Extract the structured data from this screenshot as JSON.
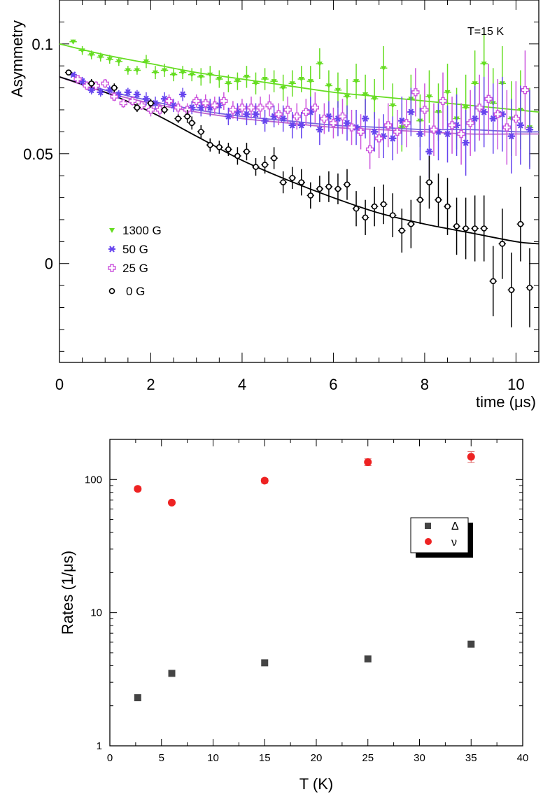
{
  "chart_data": [
    {
      "type": "scatter",
      "annotation": "T=15 K",
      "xlabel": "time (μs)",
      "ylabel": "Asymmetry",
      "xlim": [
        0,
        10.5
      ],
      "ylim": [
        -0.045,
        0.12
      ],
      "xticks": [
        "0",
        "2",
        "4",
        "6",
        "8",
        "10"
      ],
      "yticks": [
        "0",
        "0.05",
        "0.1"
      ],
      "legend_placement": "left-middle",
      "series": [
        {
          "name": "1300 G",
          "color": "#66dd22",
          "marker": "triangle-down",
          "x": [
            0.3,
            0.5,
            0.7,
            0.9,
            1.1,
            1.3,
            1.5,
            1.7,
            1.9,
            2.1,
            2.3,
            2.5,
            2.7,
            2.9,
            3.1,
            3.3,
            3.5,
            3.7,
            3.9,
            4.1,
            4.3,
            4.5,
            4.7,
            4.9,
            5.1,
            5.3,
            5.5,
            5.7,
            5.9,
            6.1,
            6.3,
            6.5,
            6.7,
            6.9,
            7.1,
            7.3,
            7.5,
            7.7,
            7.9,
            8.1,
            8.3,
            8.5,
            8.7,
            8.9,
            9.1,
            9.3,
            9.5,
            9.7,
            9.9,
            10.1,
            10.3
          ],
          "y": [
            0.101,
            0.097,
            0.095,
            0.094,
            0.093,
            0.092,
            0.088,
            0.088,
            0.092,
            0.087,
            0.088,
            0.086,
            0.087,
            0.086,
            0.085,
            0.086,
            0.084,
            0.082,
            0.083,
            0.085,
            0.082,
            0.084,
            0.083,
            0.08,
            0.082,
            0.084,
            0.083,
            0.091,
            0.081,
            0.079,
            0.076,
            0.083,
            0.077,
            0.075,
            0.089,
            0.072,
            0.062,
            0.075,
            0.065,
            0.076,
            0.069,
            0.078,
            0.066,
            0.071,
            0.082,
            0.091,
            0.073,
            0.082,
            0.066,
            0.07,
            0.062
          ],
          "yerr": [
            0.001,
            0.002,
            0.002,
            0.002,
            0.002,
            0.002,
            0.002,
            0.002,
            0.003,
            0.003,
            0.003,
            0.003,
            0.003,
            0.003,
            0.004,
            0.004,
            0.004,
            0.004,
            0.004,
            0.005,
            0.005,
            0.005,
            0.005,
            0.006,
            0.006,
            0.006,
            0.007,
            0.007,
            0.007,
            0.008,
            0.008,
            0.008,
            0.009,
            0.009,
            0.01,
            0.01,
            0.011,
            0.011,
            0.012,
            0.012,
            0.013,
            0.013,
            0.014,
            0.015,
            0.015,
            0.016,
            0.016,
            0.017,
            0.017,
            0.018,
            0.018
          ]
        },
        {
          "name": "50 G",
          "color": "#6644ee",
          "marker": "star",
          "x": [
            0.3,
            0.5,
            0.7,
            0.9,
            1.1,
            1.3,
            1.5,
            1.7,
            1.9,
            2.1,
            2.3,
            2.5,
            2.7,
            2.9,
            3.1,
            3.3,
            3.5,
            3.7,
            3.9,
            4.1,
            4.3,
            4.5,
            4.7,
            4.9,
            5.1,
            5.3,
            5.5,
            5.7,
            5.9,
            6.1,
            6.3,
            6.5,
            6.7,
            6.9,
            7.1,
            7.3,
            7.5,
            7.7,
            7.9,
            8.1,
            8.3,
            8.5,
            8.7,
            8.9,
            9.1,
            9.3,
            9.5,
            9.7,
            9.9,
            10.1,
            10.3
          ],
          "y": [
            0.086,
            0.083,
            0.079,
            0.078,
            0.079,
            0.077,
            0.078,
            0.077,
            0.075,
            0.073,
            0.075,
            0.072,
            0.077,
            0.071,
            0.071,
            0.071,
            0.072,
            0.067,
            0.069,
            0.068,
            0.068,
            0.065,
            0.067,
            0.066,
            0.063,
            0.063,
            0.069,
            0.061,
            0.067,
            0.066,
            0.064,
            0.062,
            0.066,
            0.06,
            0.058,
            0.057,
            0.065,
            0.069,
            0.059,
            0.051,
            0.06,
            0.059,
            0.063,
            0.055,
            0.066,
            0.069,
            0.066,
            0.068,
            0.058,
            0.063,
            0.061
          ],
          "yerr": [
            0.001,
            0.002,
            0.002,
            0.002,
            0.002,
            0.002,
            0.002,
            0.002,
            0.003,
            0.003,
            0.003,
            0.003,
            0.003,
            0.003,
            0.004,
            0.004,
            0.004,
            0.004,
            0.004,
            0.005,
            0.005,
            0.005,
            0.005,
            0.006,
            0.006,
            0.006,
            0.007,
            0.007,
            0.007,
            0.008,
            0.008,
            0.008,
            0.009,
            0.009,
            0.01,
            0.01,
            0.011,
            0.011,
            0.012,
            0.012,
            0.013,
            0.013,
            0.014,
            0.015,
            0.015,
            0.016,
            0.016,
            0.017,
            0.017,
            0.018,
            0.018
          ]
        },
        {
          "name": "25 G",
          "color": "#cc55dd",
          "marker": "cross",
          "x": [
            0.4,
            0.6,
            0.8,
            1.0,
            1.2,
            1.4,
            1.6,
            1.8,
            2.0,
            2.2,
            2.4,
            2.6,
            2.8,
            3.0,
            3.2,
            3.4,
            3.6,
            3.8,
            4.0,
            4.2,
            4.4,
            4.6,
            4.8,
            5.0,
            5.2,
            5.4,
            5.6,
            5.8,
            6.0,
            6.2,
            6.4,
            6.6,
            6.8,
            7.0,
            7.2,
            7.4,
            7.6,
            7.8,
            8.0,
            8.2,
            8.4,
            8.6,
            8.8,
            9.0,
            9.2,
            9.4,
            9.6,
            9.8,
            10.0,
            10.2
          ],
          "y": [
            0.084,
            0.081,
            0.081,
            0.082,
            0.076,
            0.073,
            0.074,
            0.072,
            0.07,
            0.07,
            0.074,
            0.071,
            0.07,
            0.074,
            0.073,
            0.072,
            0.074,
            0.07,
            0.071,
            0.071,
            0.071,
            0.072,
            0.068,
            0.07,
            0.067,
            0.069,
            0.071,
            0.066,
            0.064,
            0.067,
            0.062,
            0.06,
            0.052,
            0.057,
            0.063,
            0.06,
            0.064,
            0.078,
            0.07,
            0.061,
            0.074,
            0.063,
            0.059,
            0.064,
            0.071,
            0.075,
            0.068,
            0.062,
            0.066,
            0.079
          ],
          "yerr": [
            0.001,
            0.002,
            0.002,
            0.002,
            0.002,
            0.002,
            0.002,
            0.002,
            0.003,
            0.003,
            0.003,
            0.003,
            0.003,
            0.003,
            0.004,
            0.004,
            0.004,
            0.004,
            0.004,
            0.005,
            0.005,
            0.005,
            0.005,
            0.006,
            0.006,
            0.006,
            0.007,
            0.007,
            0.007,
            0.008,
            0.008,
            0.008,
            0.009,
            0.009,
            0.01,
            0.01,
            0.011,
            0.011,
            0.012,
            0.012,
            0.013,
            0.013,
            0.014,
            0.015,
            0.015,
            0.016,
            0.016,
            0.017,
            0.017,
            0.018
          ]
        },
        {
          "name": "0 G",
          "color": "#000000",
          "marker": "circle-open",
          "x": [
            0.2,
            0.7,
            1.2,
            1.7,
            2.0,
            2.3,
            2.6,
            2.8,
            2.9,
            3.1,
            3.3,
            3.5,
            3.7,
            3.9,
            4.1,
            4.3,
            4.5,
            4.7,
            4.9,
            5.1,
            5.3,
            5.5,
            5.7,
            5.9,
            6.1,
            6.3,
            6.5,
            6.7,
            6.9,
            7.1,
            7.3,
            7.5,
            7.7,
            7.9,
            8.1,
            8.3,
            8.5,
            8.7,
            8.9,
            9.1,
            9.3,
            9.5,
            9.7,
            9.9,
            10.1,
            10.3
          ],
          "y": [
            0.087,
            0.082,
            0.08,
            0.071,
            0.073,
            0.07,
            0.066,
            0.067,
            0.064,
            0.06,
            0.054,
            0.053,
            0.052,
            0.049,
            0.051,
            0.044,
            0.045,
            0.048,
            0.037,
            0.039,
            0.037,
            0.031,
            0.034,
            0.035,
            0.034,
            0.036,
            0.025,
            0.021,
            0.026,
            0.027,
            0.022,
            0.015,
            0.018,
            0.029,
            0.037,
            0.029,
            0.026,
            0.017,
            0.016,
            0.016,
            0.016,
            -0.008,
            0.009,
            -0.012,
            0.018,
            -0.011
          ],
          "yerr": [
            0.001,
            0.002,
            0.002,
            0.002,
            0.002,
            0.002,
            0.002,
            0.003,
            0.003,
            0.003,
            0.003,
            0.003,
            0.003,
            0.004,
            0.004,
            0.004,
            0.004,
            0.005,
            0.005,
            0.005,
            0.006,
            0.006,
            0.006,
            0.007,
            0.007,
            0.007,
            0.008,
            0.008,
            0.009,
            0.009,
            0.01,
            0.01,
            0.011,
            0.011,
            0.012,
            0.012,
            0.013,
            0.013,
            0.014,
            0.015,
            0.015,
            0.016,
            0.016,
            0.017,
            0.017,
            0.018
          ]
        }
      ],
      "fits": [
        {
          "series": "1300 G",
          "color": "#66dd22",
          "x": [
            0,
            1,
            2,
            3,
            4,
            5,
            6,
            7,
            8,
            9,
            10,
            10.5
          ],
          "y": [
            0.1,
            0.095,
            0.091,
            0.087,
            0.084,
            0.081,
            0.078,
            0.076,
            0.074,
            0.072,
            0.07,
            0.069
          ]
        },
        {
          "series": "50 G",
          "color": "#7766dd",
          "x": [
            0,
            1,
            2,
            3,
            4,
            5,
            6,
            7,
            8,
            9,
            10,
            10.5
          ],
          "y": [
            0.085,
            0.079,
            0.074,
            0.07,
            0.067,
            0.065,
            0.063,
            0.062,
            0.061,
            0.061,
            0.06,
            0.06
          ]
        },
        {
          "series": "25 G",
          "color": "#bb66cc",
          "x": [
            0,
            1,
            2,
            3,
            4,
            5,
            6,
            7,
            8,
            9,
            10,
            10.5
          ],
          "y": [
            0.085,
            0.078,
            0.073,
            0.069,
            0.066,
            0.064,
            0.062,
            0.061,
            0.06,
            0.059,
            0.059,
            0.059
          ]
        },
        {
          "series": "0 G",
          "color": "#000000",
          "x": [
            0,
            1,
            2,
            3,
            4,
            5,
            6,
            7,
            8,
            9,
            10,
            10.5
          ],
          "y": [
            0.085,
            0.078,
            0.069,
            0.058,
            0.047,
            0.038,
            0.03,
            0.023,
            0.018,
            0.014,
            0.01,
            0.009
          ]
        }
      ]
    },
    {
      "type": "scatter",
      "xlabel": "T (K)",
      "ylabel": "Rates (1/μs)",
      "xlim": [
        0,
        40
      ],
      "ylim": [
        1,
        200
      ],
      "yscale": "log",
      "xticks": [
        "0",
        "5",
        "10",
        "15",
        "20",
        "25",
        "30",
        "35",
        "40"
      ],
      "yticks": [
        "1",
        "10",
        "100"
      ],
      "legend_placement": "right-upper",
      "series": [
        {
          "name": "Δ",
          "color": "#444444",
          "marker": "square",
          "x": [
            2.7,
            6,
            15,
            25,
            35
          ],
          "y": [
            2.3,
            3.5,
            4.2,
            4.5,
            5.8
          ]
        },
        {
          "name": "ν",
          "color": "#ee2222",
          "marker": "circle",
          "x": [
            2.7,
            6,
            15,
            25,
            35
          ],
          "y": [
            85,
            67,
            98,
            135,
            148
          ],
          "yerr": [
            3,
            2,
            4,
            8,
            14
          ]
        }
      ]
    }
  ]
}
